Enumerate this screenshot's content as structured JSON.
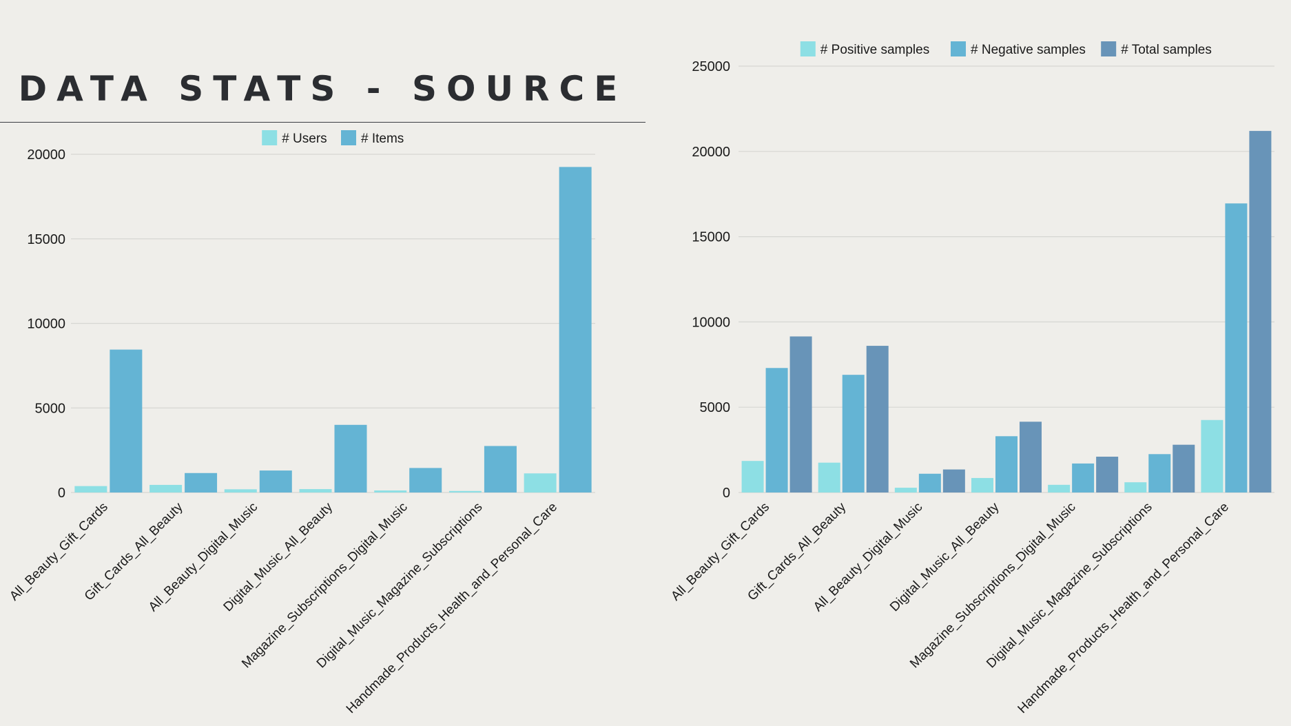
{
  "page": {
    "title": "DATA STATS - SOURCE"
  },
  "colors": {
    "background": "#efeeea",
    "grid": "#d6d6d2",
    "users": "#8ddfe4",
    "items": "#64b4d4",
    "positive": "#8ddfe4",
    "negative": "#64b4d4",
    "total": "#6894b8"
  },
  "chart_data": [
    {
      "type": "bar",
      "categories": [
        "All_Beauty_Gift_Cards",
        "Gift_Cards_All_Beauty",
        "All_Beauty_Digital_Music",
        "Digital_Music_All_Beauty",
        "Magazine_Subscriptions_Digital_Music",
        "Digital_Music_Magazine_Subscriptions",
        "Handmade_Products_Health_and_Personal_Care"
      ],
      "series": [
        {
          "name": "# Users",
          "color": "#8ddfe4",
          "values": [
            380,
            450,
            190,
            200,
            120,
            90,
            1130
          ]
        },
        {
          "name": "# Items",
          "color": "#64b4d4",
          "values": [
            8450,
            1150,
            1300,
            4000,
            1450,
            2750,
            19250
          ]
        }
      ],
      "ylim": [
        0,
        20000
      ],
      "yticks": [
        0,
        5000,
        10000,
        15000,
        20000
      ],
      "grid": true,
      "legend": "top-center",
      "title": "",
      "xlabel": "",
      "ylabel": ""
    },
    {
      "type": "bar",
      "categories": [
        "All_Beauty_Gift_Cards",
        "Gift_Cards_All_Beauty",
        "All_Beauty_Digital_Music",
        "Digital_Music_All_Beauty",
        "Magazine_Subscriptions_Digital_Music",
        "Digital_Music_Magazine_Subscriptions",
        "Handmade_Products_Health_and_Personal_Care"
      ],
      "series": [
        {
          "name": "# Positive samples",
          "color": "#8ddfe4",
          "values": [
            1850,
            1750,
            280,
            850,
            450,
            600,
            4250
          ]
        },
        {
          "name": "# Negative samples",
          "color": "#64b4d4",
          "values": [
            7300,
            6900,
            1100,
            3300,
            1700,
            2250,
            16950
          ]
        },
        {
          "name": "# Total samples",
          "color": "#6894b8",
          "values": [
            9150,
            8600,
            1350,
            4150,
            2100,
            2800,
            21200
          ]
        }
      ],
      "ylim": [
        0,
        25000
      ],
      "yticks": [
        0,
        5000,
        10000,
        15000,
        20000,
        25000
      ],
      "grid": true,
      "legend": "top-center",
      "title": "",
      "xlabel": "",
      "ylabel": ""
    }
  ]
}
